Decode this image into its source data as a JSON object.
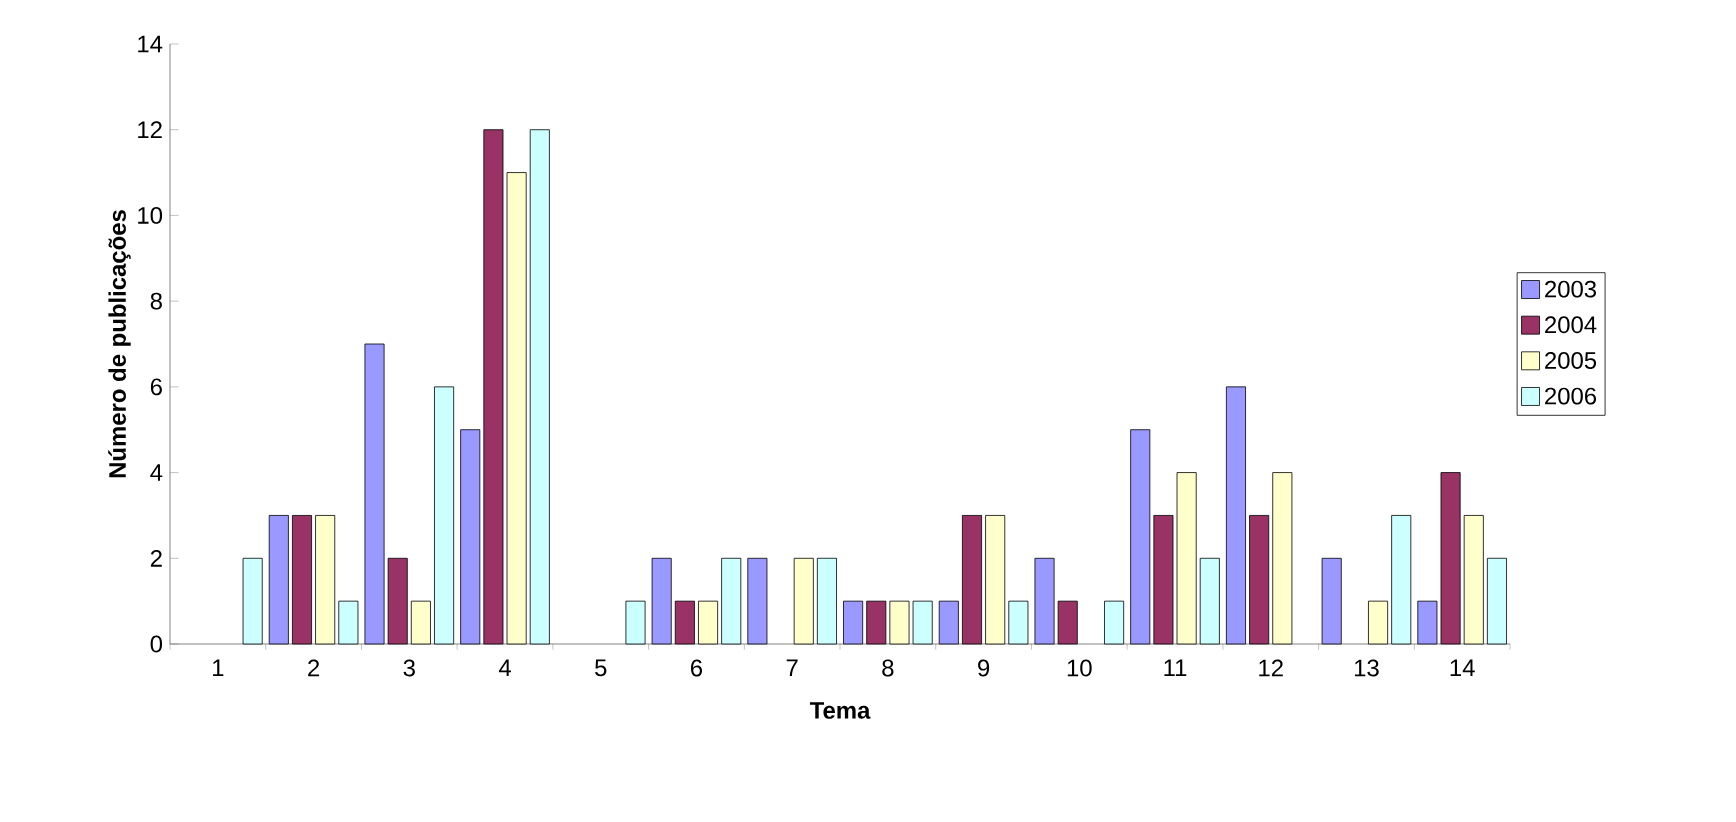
{
  "chart_data": {
    "type": "bar",
    "xlabel": "Tema",
    "ylabel": "Número de publicações",
    "categories": [
      "1",
      "2",
      "3",
      "4",
      "5",
      "6",
      "7",
      "8",
      "9",
      "10",
      "11",
      "12",
      "13",
      "14"
    ],
    "series": [
      {
        "name": "2003",
        "color": "#9999ff",
        "values": [
          null,
          3,
          7,
          5,
          null,
          2,
          2,
          1,
          1,
          2,
          5,
          6,
          2,
          1
        ]
      },
      {
        "name": "2004",
        "color": "#993366",
        "values": [
          null,
          3,
          2,
          12,
          null,
          1,
          null,
          1,
          3,
          1,
          3,
          3,
          null,
          4
        ]
      },
      {
        "name": "2005",
        "color": "#ffffcc",
        "values": [
          null,
          3,
          1,
          11,
          null,
          1,
          2,
          1,
          3,
          null,
          4,
          4,
          1,
          3
        ]
      },
      {
        "name": "2006",
        "color": "#ccffff",
        "values": [
          2,
          1,
          6,
          12,
          1,
          2,
          2,
          1,
          1,
          1,
          2,
          null,
          3,
          2
        ]
      }
    ],
    "ylim": [
      0,
      14
    ],
    "yticks": [
      0,
      2,
      4,
      6,
      8,
      10,
      12,
      14
    ],
    "legend": "right",
    "grid": false
  }
}
